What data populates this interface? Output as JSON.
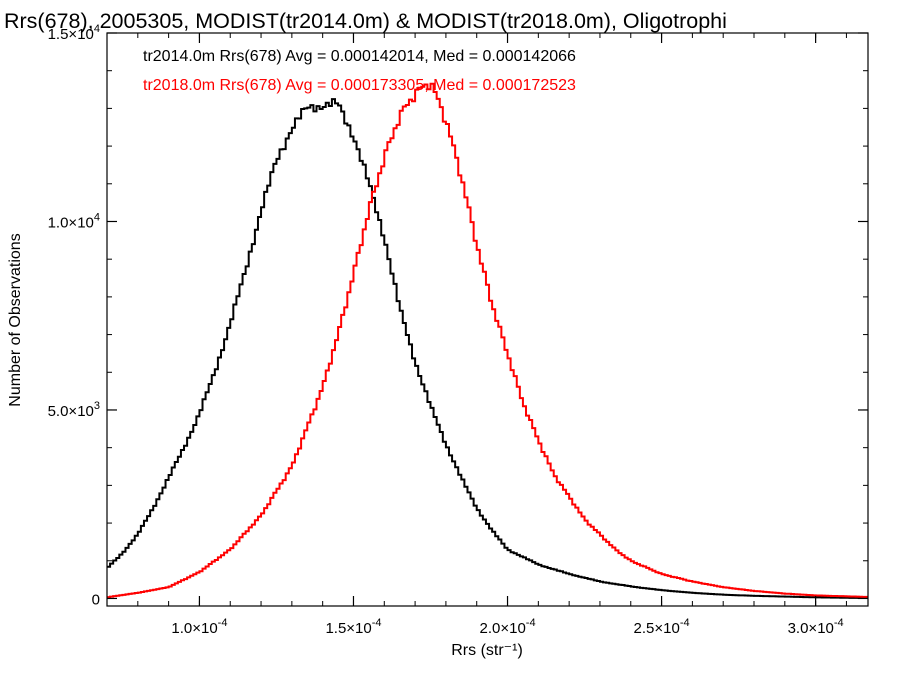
{
  "chart_data": {
    "type": "line",
    "title": "Rrs(678), 2005305, MODIST(tr2014.0m) & MODIST(tr2018.0m), Oligotrophi",
    "xlabel": "Rrs (str⁻¹)",
    "ylabel": "Number of Observations",
    "xlim": [
      7e-05,
      0.000317
    ],
    "ylim": [
      -200,
      15000
    ],
    "grid": false,
    "x_ticks": [
      {
        "value": 0.0001,
        "mantissa": "1.0×10",
        "exp": "-4"
      },
      {
        "value": 0.00015,
        "mantissa": "1.5×10",
        "exp": "-4"
      },
      {
        "value": 0.0002,
        "mantissa": "2.0×10",
        "exp": "-4"
      },
      {
        "value": 0.00025,
        "mantissa": "2.5×10",
        "exp": "-4"
      },
      {
        "value": 0.0003,
        "mantissa": "3.0×10",
        "exp": "-4"
      }
    ],
    "y_ticks": [
      {
        "value": 0,
        "mantissa": "0",
        "exp": ""
      },
      {
        "value": 5000,
        "mantissa": "5.0×10",
        "exp": "3"
      },
      {
        "value": 10000,
        "mantissa": "1.0×10",
        "exp": "4"
      },
      {
        "value": 15000,
        "mantissa": "1.5×10",
        "exp": "4"
      }
    ],
    "series": [
      {
        "name": "tr2014.0m",
        "color": "#000000",
        "label": "tr2014.0m Rrs(678) Avg = 0.000142014, Med = 0.000142066",
        "x": [
          7e-05,
          7.5e-05,
          8e-05,
          8.5e-05,
          9e-05,
          9.5e-05,
          0.0001,
          0.000105,
          0.00011,
          0.000115,
          0.00012,
          0.000125,
          0.00013,
          0.000135,
          0.00014,
          0.000145,
          0.00015,
          0.000155,
          0.00016,
          0.000165,
          0.00017,
          0.000175,
          0.00018,
          0.000185,
          0.00019,
          0.000195,
          0.0002,
          0.00021,
          0.00022,
          0.00023,
          0.00024,
          0.00025,
          0.00026,
          0.00027,
          0.00028,
          0.0003,
          0.000317
        ],
        "y": [
          800,
          1200,
          1700,
          2400,
          3200,
          4000,
          4900,
          6000,
          7300,
          8700,
          10300,
          11600,
          12500,
          13000,
          13100,
          13100,
          12300,
          11000,
          9600,
          7700,
          6300,
          5100,
          4100,
          3200,
          2400,
          1800,
          1300,
          900,
          650,
          450,
          320,
          220,
          150,
          100,
          70,
          30,
          10
        ]
      },
      {
        "name": "tr2018.0m",
        "color": "#ff0000",
        "label": "tr2018.0m Rrs(678) Avg = 0.000173305, Med = 0.000172523",
        "x": [
          7e-05,
          8e-05,
          9e-05,
          0.0001,
          0.00011,
          0.00012,
          0.00013,
          0.00014,
          0.000145,
          0.00015,
          0.000155,
          0.00016,
          0.000165,
          0.00017,
          0.000175,
          0.00018,
          0.000185,
          0.00019,
          0.000195,
          0.0002,
          0.000205,
          0.00021,
          0.000215,
          0.00022,
          0.000225,
          0.00023,
          0.000235,
          0.00024,
          0.00025,
          0.00026,
          0.00027,
          0.00028,
          0.00029,
          0.0003,
          0.000317
        ],
        "y": [
          30,
          150,
          300,
          700,
          1300,
          2200,
          3500,
          5600,
          7000,
          8600,
          10300,
          11700,
          12800,
          13400,
          13700,
          12700,
          11200,
          9400,
          7800,
          6500,
          5200,
          4200,
          3300,
          2700,
          2100,
          1700,
          1300,
          1000,
          650,
          450,
          300,
          200,
          130,
          80,
          40
        ]
      }
    ]
  }
}
